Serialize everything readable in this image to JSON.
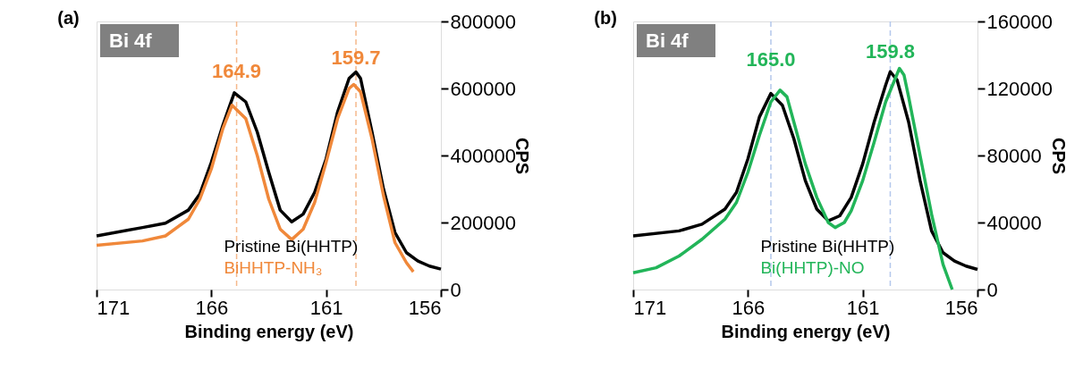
{
  "chart_data": [
    {
      "type": "line",
      "title": "(a)",
      "xlabel": "Binding energy (eV)",
      "ylabel": "CPS",
      "xlim": [
        171,
        156
      ],
      "xticks": [
        171,
        166,
        161,
        156
      ],
      "ylim": [
        0,
        800000
      ],
      "yticks": [
        0,
        200000,
        400000,
        600000,
        800000
      ],
      "series": [
        {
          "name": "Pristine Bi(HHTP)",
          "color": "#000000",
          "x": [
            171,
            169,
            168,
            167,
            166.5,
            166,
            165.5,
            165,
            164.5,
            164,
            163.5,
            163,
            162.5,
            162,
            161.5,
            161,
            160.5,
            160,
            159.7,
            159.5,
            159,
            158.5,
            158,
            157.5,
            157,
            156.5,
            156
          ],
          "values": [
            160000,
            185000,
            198000,
            237000,
            285000,
            380000,
            490000,
            587000,
            560000,
            470000,
            350000,
            237000,
            202000,
            225000,
            290000,
            390000,
            530000,
            630000,
            649000,
            630000,
            470000,
            300000,
            170000,
            110000,
            85000,
            70000,
            61000
          ]
        },
        {
          "name": "BiHHTP-NH₃",
          "color": "#f0883a",
          "x": [
            171,
            169,
            168,
            167,
            166.5,
            166,
            165.5,
            165.1,
            164.5,
            164,
            163.5,
            163,
            162.5,
            162,
            161.5,
            161,
            160.5,
            160,
            159.8,
            159.5,
            159,
            158.5,
            158,
            157.5,
            157.2
          ],
          "values": [
            132000,
            145000,
            160000,
            210000,
            270000,
            360000,
            480000,
            550000,
            510000,
            400000,
            270000,
            180000,
            149000,
            180000,
            260000,
            380000,
            510000,
            600000,
            612000,
            590000,
            450000,
            280000,
            140000,
            80000,
            53000
          ]
        }
      ],
      "ref_lines": [
        {
          "axis": "x",
          "value": 164.9,
          "color": "#f5b98c",
          "line_style": "dashed"
        },
        {
          "axis": "x",
          "value": 159.7,
          "color": "#f5b98c",
          "line_style": "dashed"
        }
      ],
      "annotations": [
        "Bi 4f",
        {
          "text": "164.9",
          "x": 164.9,
          "y": 650000
        },
        {
          "text": "159.7",
          "x": 159.7,
          "y": 690000
        }
      ]
    },
    {
      "type": "line",
      "title": "(b)",
      "xlabel": "Binding energy (eV)",
      "ylabel": "CPS",
      "xlim": [
        171,
        156
      ],
      "xticks": [
        171,
        166,
        161,
        156
      ],
      "ylim": [
        0,
        160000
      ],
      "yticks": [
        0,
        40000,
        80000,
        120000,
        160000
      ],
      "series": [
        {
          "name": "Pristine Bi(HHTP)",
          "color": "#000000",
          "x": [
            171,
            169,
            168,
            167,
            166.5,
            166,
            165.5,
            165,
            164.5,
            164,
            163.5,
            163,
            162.5,
            162,
            161.5,
            161,
            160.5,
            160,
            159.8,
            159.5,
            159,
            158.5,
            158,
            157.5,
            157,
            156.5,
            156
          ],
          "values": [
            32000,
            35000,
            39000,
            48000,
            58000,
            78000,
            103000,
            117000,
            110000,
            90000,
            65000,
            48000,
            41000,
            44000,
            55000,
            75000,
            100000,
            122000,
            130000,
            125000,
            100000,
            65000,
            35000,
            22000,
            17000,
            14000,
            12000
          ]
        },
        {
          "name": "Bi(HHTP)-NO",
          "color": "#22b559",
          "x": [
            171,
            170,
            169,
            168,
            167,
            166.5,
            166,
            165.5,
            165,
            164.6,
            164.3,
            164,
            163.5,
            163,
            162.5,
            162.2,
            161.8,
            161.5,
            161,
            160.5,
            160,
            159.4,
            159.2,
            159,
            158.5,
            158,
            157.5,
            157.1
          ],
          "values": [
            10000,
            13000,
            20000,
            30000,
            42000,
            52000,
            70000,
            92000,
            112000,
            119000,
            115000,
            100000,
            75000,
            55000,
            40000,
            37000,
            40000,
            47000,
            65000,
            88000,
            112000,
            132000,
            128000,
            115000,
            80000,
            45000,
            15000,
            0
          ]
        }
      ],
      "ref_lines": [
        {
          "axis": "x",
          "value": 165.0,
          "color": "#b4c8ec",
          "line_style": "dashed"
        },
        {
          "axis": "x",
          "value": 159.8,
          "color": "#b4c8ec",
          "line_style": "dashed"
        }
      ],
      "annotations": [
        "Bi 4f",
        {
          "text": "165.0",
          "x": 165.0,
          "y": 137000
        },
        {
          "text": "159.8",
          "x": 159.8,
          "y": 142000
        }
      ]
    }
  ]
}
